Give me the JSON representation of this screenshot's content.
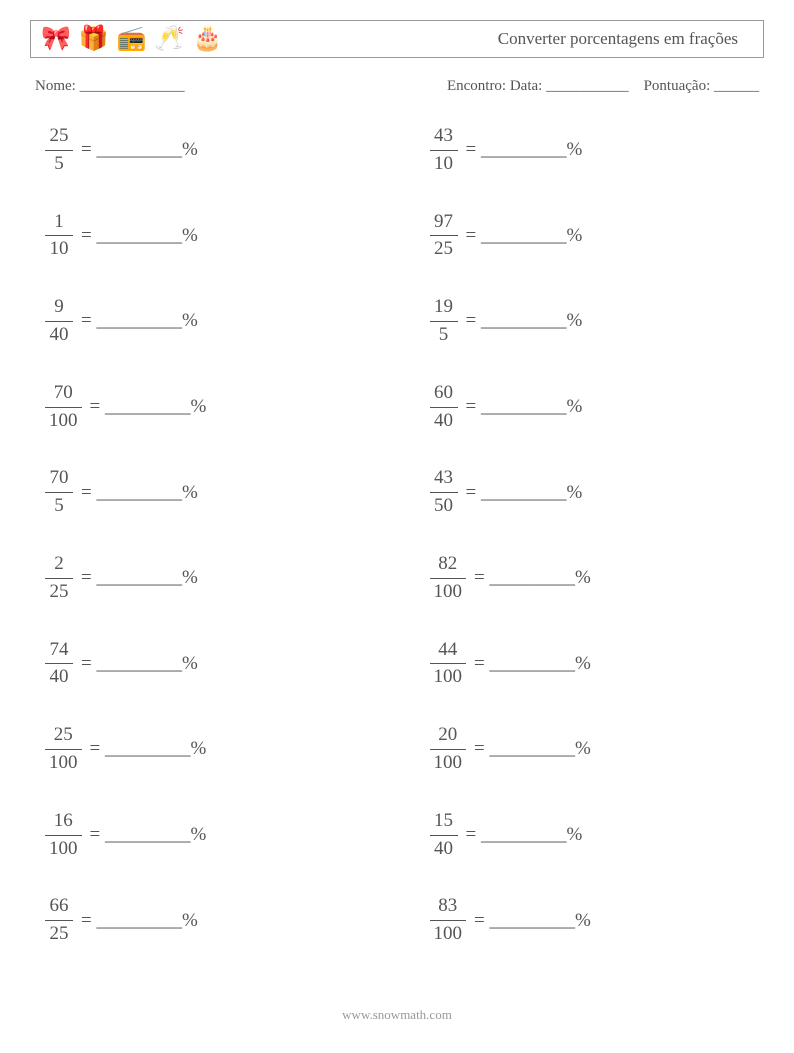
{
  "header": {
    "title": "Converter porcentagens em frações",
    "icons": [
      "🎀",
      "🎁",
      "📻",
      "🥂",
      "🎂"
    ]
  },
  "info": {
    "name_label": "Nome:",
    "name_blank": "______________",
    "encounter_label": "Encontro: Data:",
    "date_blank": "___________",
    "score_label": "Pontuação:",
    "score_blank": "______"
  },
  "problem_blank": " = _________%",
  "columns": [
    [
      {
        "num": "25",
        "den": "5"
      },
      {
        "num": "1",
        "den": "10"
      },
      {
        "num": "9",
        "den": "40"
      },
      {
        "num": "70",
        "den": "100"
      },
      {
        "num": "70",
        "den": "5"
      },
      {
        "num": "2",
        "den": "25"
      },
      {
        "num": "74",
        "den": "40"
      },
      {
        "num": "25",
        "den": "100"
      },
      {
        "num": "16",
        "den": "100"
      },
      {
        "num": "66",
        "den": "25"
      }
    ],
    [
      {
        "num": "43",
        "den": "10"
      },
      {
        "num": "97",
        "den": "25"
      },
      {
        "num": "19",
        "den": "5"
      },
      {
        "num": "60",
        "den": "40"
      },
      {
        "num": "43",
        "den": "50"
      },
      {
        "num": "82",
        "den": "100"
      },
      {
        "num": "44",
        "den": "100"
      },
      {
        "num": "20",
        "den": "100"
      },
      {
        "num": "15",
        "den": "40"
      },
      {
        "num": "83",
        "den": "100"
      }
    ]
  ],
  "footer": {
    "text": "www.snowmath.com"
  },
  "colors": {
    "text": "#555555",
    "border": "#999999",
    "background": "#ffffff",
    "footer_text": "#999999"
  }
}
